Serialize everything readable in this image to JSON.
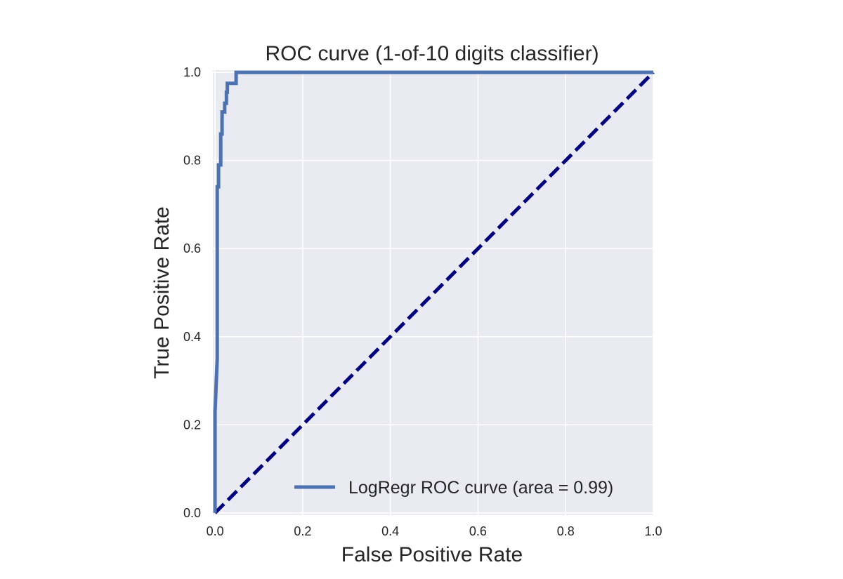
{
  "chart_data": {
    "type": "line",
    "title": "ROC curve (1-of-10 digits classifier)",
    "xlabel": "False Positive Rate",
    "ylabel": "True Positive Rate",
    "xlim": [
      -0.005,
      1.0
    ],
    "ylim": [
      -0.005,
      1.005
    ],
    "xticks": [
      "0.0",
      "0.2",
      "0.4",
      "0.6",
      "0.8",
      "1.0"
    ],
    "yticks": [
      "0.0",
      "0.2",
      "0.4",
      "0.6",
      "0.8",
      "1.0"
    ],
    "grid": true,
    "legend_position": "lower-right",
    "series": [
      {
        "name": "LogRegr ROC curve (area = 0.99)",
        "color": "#4c72b0",
        "x": [
          0.0,
          0.0,
          0.0,
          0.0,
          0.005,
          0.005,
          0.008,
          0.008,
          0.013,
          0.013,
          0.016,
          0.016,
          0.022,
          0.022,
          0.026,
          0.026,
          0.028,
          0.028,
          0.03,
          0.03,
          0.048,
          0.048,
          1.0
        ],
        "y": [
          0.0,
          0.02,
          0.23,
          0.23,
          0.35,
          0.74,
          0.74,
          0.79,
          0.79,
          0.86,
          0.86,
          0.91,
          0.91,
          0.93,
          0.93,
          0.955,
          0.955,
          0.975,
          0.975,
          0.975,
          0.975,
          1.0,
          1.0
        ]
      },
      {
        "name": "",
        "color": "#000080",
        "style": "dashed",
        "x": [
          0.0,
          1.0
        ],
        "y": [
          0.0,
          1.0
        ]
      }
    ]
  }
}
